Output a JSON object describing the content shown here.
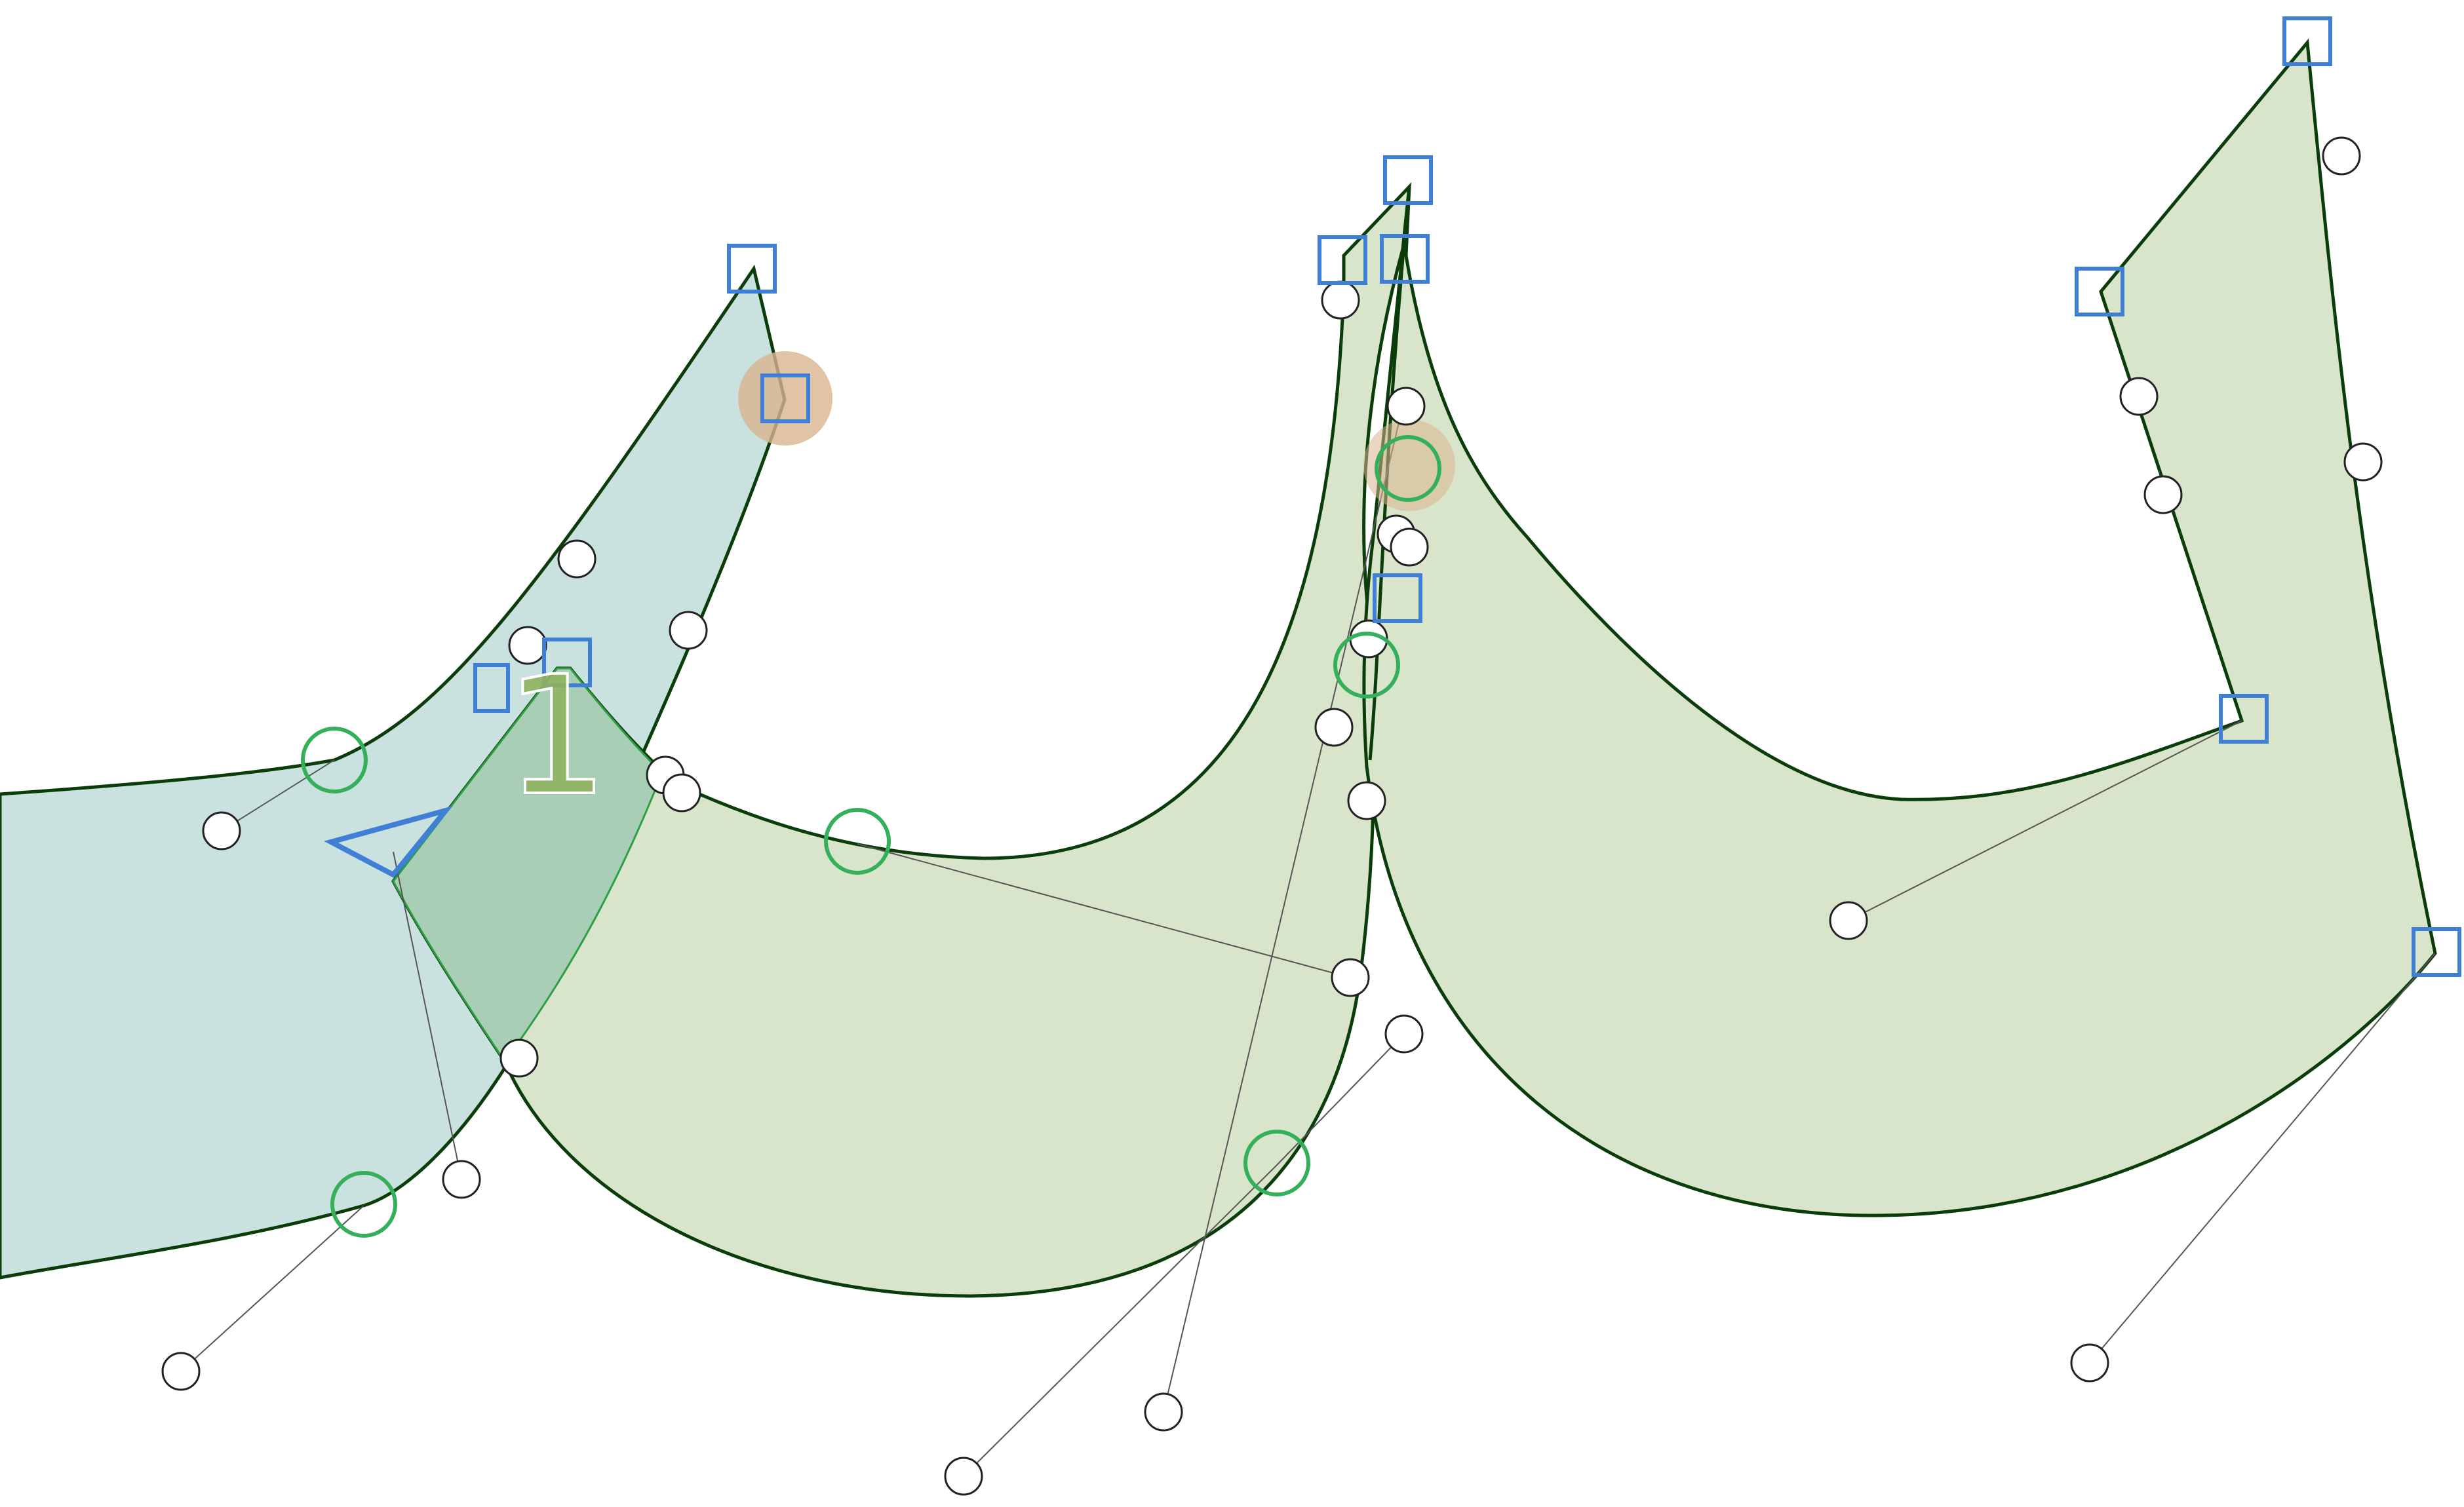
{
  "editor": {
    "glyph_counter_label": "1",
    "colors": {
      "background": "#ffffff",
      "outline": "#0b3d0b",
      "outline_accent": "#2e9e44",
      "fill_selected_shape": "#c9e1df",
      "fill_shapes": "#d9e5cb",
      "fill_overlap": "#a8cfb6",
      "corner_point": "#3f7fd6",
      "smooth_point": "#35b05a",
      "control_point": "#222222",
      "selection_halo": "#d9b48f",
      "start_point_marker": "#3f7fd6",
      "counter_label": "#8fb35e"
    },
    "icons": {
      "corner_point": "square-node-icon",
      "smooth_point": "circle-node-icon",
      "control_point": "bezier-handle-icon",
      "start_point": "triangle-direction-icon"
    }
  }
}
